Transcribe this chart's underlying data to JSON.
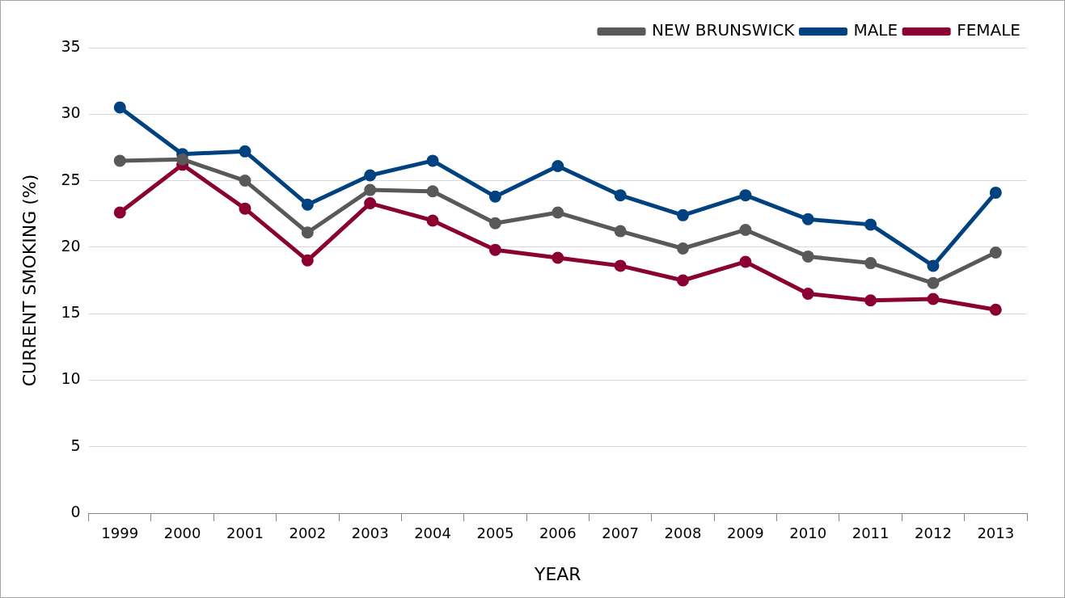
{
  "chart_data": {
    "type": "line",
    "xlabel": "YEAR",
    "ylabel": "CURRENT SMOKING (%)",
    "categories": [
      "1999",
      "2000",
      "2001",
      "2002",
      "2003",
      "2004",
      "2005",
      "2006",
      "2007",
      "2008",
      "2009",
      "2010",
      "2011",
      "2012",
      "2013"
    ],
    "series": [
      {
        "name": "NEW BRUNSWICK",
        "color": "#595959",
        "values": [
          26.5,
          26.6,
          25.0,
          21.1,
          24.3,
          24.2,
          21.8,
          22.6,
          21.2,
          19.9,
          21.3,
          19.3,
          18.8,
          17.3,
          19.6
        ]
      },
      {
        "name": "MALE",
        "color": "#00427f",
        "values": [
          30.5,
          27.0,
          27.2,
          23.2,
          25.4,
          26.5,
          23.8,
          26.1,
          23.9,
          22.4,
          23.9,
          22.1,
          21.7,
          18.6,
          24.1
        ]
      },
      {
        "name": "FEMALE",
        "color": "#8a0032",
        "values": [
          22.6,
          26.2,
          22.9,
          19.0,
          23.3,
          22.0,
          19.8,
          19.2,
          18.6,
          17.5,
          18.9,
          16.5,
          16.0,
          16.1,
          15.3
        ]
      }
    ],
    "ylim": [
      0,
      35
    ],
    "yticks": [
      0,
      5,
      10,
      15,
      20,
      25,
      30,
      35
    ],
    "grid": "y",
    "legend": "top right",
    "marker": "circle",
    "line_style": "solid"
  }
}
